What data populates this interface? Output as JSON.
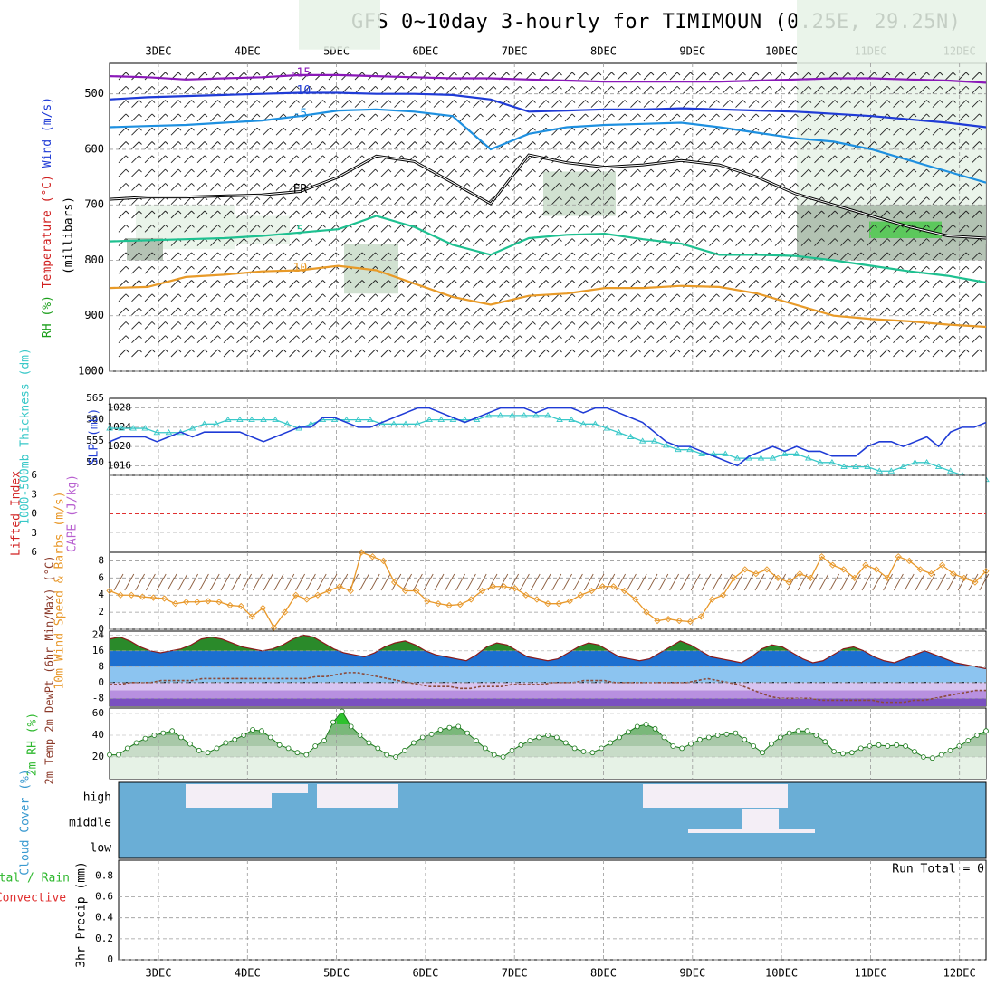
{
  "title": "GFS 0~10day 3-hourly for TIMIMOUN (0.25E, 29.25N)",
  "dates": [
    "3DEC",
    "4DEC",
    "5DEC",
    "6DEC",
    "7DEC",
    "8DEC",
    "9DEC",
    "10DEC",
    "11DEC",
    "12DEC"
  ],
  "colors": {
    "rh_shade": "#e6f2e6",
    "rh_mid": "#c9dcc9",
    "rh_dark": "#a8b8a8",
    "rh_green": "#4cc94c",
    "thickness": "#38c8c8",
    "slp": "#1f3bd6",
    "li_zero": "#e03030",
    "wind": "#e8982a",
    "cloud_blue": "#6aaed6",
    "cloud_white": "#f4eef6",
    "rh2m": "#2eb82e",
    "dewpt": "#8b4a3a"
  },
  "chart_data": [
    {
      "type": "contour",
      "name": "upper-air",
      "ylabel_parts": [
        "RH (%)",
        "Temperature (°C)",
        "Wind (m/s)"
      ],
      "ylabel_vertical": "(millibars)",
      "yticks": [
        500,
        600,
        700,
        800,
        900,
        1000
      ],
      "ylim": [
        1000,
        445
      ],
      "contours": [
        {
          "label": "-15",
          "color": "#8a18b8",
          "levels_mb": [
            468,
            470,
            474,
            472,
            470,
            466,
            466,
            468,
            470,
            472,
            472,
            474,
            476,
            478,
            478,
            478,
            478,
            476,
            474,
            472,
            472,
            474,
            476,
            480
          ]
        },
        {
          "label": "-10",
          "color": "#1f3bd6",
          "levels_mb": [
            510,
            506,
            504,
            502,
            500,
            498,
            498,
            500,
            500,
            502,
            510,
            532,
            530,
            528,
            528,
            526,
            528,
            530,
            532,
            536,
            540,
            546,
            552,
            560
          ]
        },
        {
          "label": "-5",
          "color": "#1e90e0",
          "levels_mb": [
            560,
            558,
            556,
            552,
            548,
            540,
            530,
            528,
            532,
            540,
            600,
            572,
            560,
            556,
            554,
            552,
            560,
            570,
            580,
            586,
            600,
            620,
            640,
            660
          ]
        },
        {
          "label": "FR",
          "color": "#000000",
          "levels_mb": [
            690,
            686,
            686,
            684,
            682,
            676,
            650,
            612,
            622,
            660,
            698,
            610,
            624,
            632,
            628,
            620,
            628,
            650,
            680,
            700,
            720,
            740,
            756,
            760
          ]
        },
        {
          "label": "5",
          "color": "#1ec090",
          "levels_mb": [
            766,
            764,
            762,
            760,
            756,
            750,
            744,
            720,
            740,
            772,
            790,
            760,
            754,
            752,
            762,
            770,
            790,
            790,
            792,
            800,
            810,
            820,
            828,
            840
          ]
        },
        {
          "label": "10",
          "color": "#e89a28",
          "levels_mb": [
            850,
            848,
            830,
            826,
            820,
            818,
            810,
            818,
            842,
            866,
            880,
            864,
            860,
            850,
            850,
            846,
            848,
            860,
            880,
            900,
            906,
            910,
            916,
            920
          ]
        }
      ]
    },
    {
      "type": "line",
      "name": "thickness-slp",
      "ylabel_left": "1000-500mb Thickness (dm)",
      "ylabel_right": "SLP (mb)",
      "left_ticks": [
        550,
        555,
        560,
        565
      ],
      "right_ticks": [
        1016,
        1020,
        1024,
        1028
      ],
      "ylim_left": [
        547,
        565
      ],
      "ylim_right": [
        1014,
        1030
      ],
      "series": [
        {
          "axis": "left",
          "values": [
            558,
            558,
            558,
            558,
            557,
            557,
            557,
            558,
            559,
            559,
            560,
            560,
            560,
            560,
            560,
            559,
            558,
            559,
            560,
            560,
            560,
            560,
            560,
            559,
            559,
            559,
            559,
            560,
            560,
            560,
            560,
            560,
            561,
            561,
            561,
            561,
            561,
            561,
            560,
            560,
            559,
            559,
            558,
            557,
            556,
            555,
            555,
            554,
            553,
            553,
            552,
            552,
            552,
            551,
            551,
            551,
            551,
            552,
            552,
            551,
            550,
            550,
            549,
            549,
            549,
            548,
            548,
            549,
            550,
            550,
            549,
            548,
            547,
            546,
            546
          ]
        },
        {
          "axis": "right",
          "values": [
            1021,
            1022,
            1022,
            1022,
            1021,
            1022,
            1023,
            1022,
            1023,
            1023,
            1023,
            1023,
            1022,
            1021,
            1022,
            1023,
            1024,
            1024,
            1026,
            1026,
            1025,
            1024,
            1024,
            1025,
            1026,
            1027,
            1028,
            1028,
            1027,
            1026,
            1025,
            1026,
            1027,
            1028,
            1028,
            1028,
            1027,
            1028,
            1028,
            1028,
            1027,
            1028,
            1028,
            1027,
            1026,
            1025,
            1023,
            1021,
            1020,
            1020,
            1019,
            1018,
            1017,
            1016,
            1018,
            1019,
            1020,
            1019,
            1020,
            1019,
            1019,
            1018,
            1018,
            1018,
            1020,
            1021,
            1021,
            1020,
            1021,
            1022,
            1020,
            1023,
            1024,
            1024,
            1025
          ]
        }
      ]
    },
    {
      "type": "line",
      "name": "li-cape",
      "ylabel_left": "Lifted Index",
      "ylabel_right": "CAPE (J/kg)",
      "yticks": [
        -6,
        -3,
        0,
        3,
        6
      ],
      "ylim": [
        -6,
        6
      ],
      "reference_line": 0
    },
    {
      "type": "line",
      "name": "wind10m",
      "ylabel": "10m Wind Speed & Barbs (m/s)",
      "yticks": [
        0,
        2,
        4,
        6,
        8
      ],
      "ylim": [
        0,
        9
      ],
      "series": [
        {
          "values": [
            4.5,
            4.0,
            4.0,
            3.8,
            3.7,
            3.6,
            3.0,
            3.2,
            3.2,
            3.3,
            3.2,
            2.8,
            2.7,
            1.5,
            2.5,
            0.2,
            2.0,
            4.0,
            3.5,
            4.0,
            4.5,
            5.0,
            4.5,
            9.0,
            8.5,
            8.0,
            5.5,
            4.5,
            4.5,
            3.3,
            3.0,
            2.8,
            2.9,
            3.5,
            4.5,
            5.0,
            5.0,
            4.8,
            4.0,
            3.5,
            3.0,
            3.0,
            3.3,
            4.0,
            4.5,
            5.0,
            5.0,
            4.5,
            3.5,
            2.0,
            1.0,
            1.2,
            1.0,
            0.9,
            1.5,
            3.5,
            4.0,
            6.0,
            7.0,
            6.5,
            7.0,
            6.0,
            5.5,
            6.5,
            6.0,
            8.5,
            7.5,
            7.0,
            6.0,
            7.5,
            7.0,
            6.0,
            8.5,
            8.0,
            7.0,
            6.5,
            7.5,
            6.5,
            6.0,
            5.5,
            6.8
          ]
        }
      ]
    },
    {
      "type": "area",
      "name": "temp2m",
      "ylabel": "2m Temp 2m DewPt (6hr Min/Max) (°C)",
      "yticks": [
        -8,
        0,
        8,
        16,
        24
      ],
      "ylim": [
        -12,
        26
      ],
      "series": [
        {
          "name": "Temp",
          "values": [
            22,
            23,
            21,
            18,
            16,
            15,
            16,
            17,
            19,
            22,
            23,
            22,
            20,
            18,
            17,
            16,
            17,
            19,
            22,
            24,
            23,
            20,
            17,
            15,
            14,
            13,
            15,
            18,
            20,
            21,
            19,
            16,
            14,
            13,
            12,
            11,
            14,
            18,
            20,
            19,
            16,
            13,
            12,
            11,
            12,
            15,
            18,
            20,
            19,
            16,
            13,
            12,
            11,
            12,
            15,
            18,
            21,
            19,
            16,
            13,
            12,
            11,
            10,
            13,
            17,
            19,
            18,
            15,
            12,
            10,
            11,
            14,
            17,
            18,
            16,
            13,
            11,
            10,
            12,
            14,
            16,
            14,
            12,
            10,
            9,
            8,
            7
          ]
        },
        {
          "name": "DewPt",
          "values": [
            -1,
            -1,
            0,
            0,
            0,
            1,
            1,
            1,
            1,
            2,
            2,
            2,
            2,
            2,
            2,
            2,
            2,
            2,
            2,
            2,
            3,
            3,
            4,
            5,
            5,
            4,
            3,
            2,
            1,
            0,
            -1,
            -2,
            -2,
            -2,
            -3,
            -3,
            -2,
            -2,
            -2,
            -1,
            -1,
            -1,
            -1,
            0,
            0,
            0,
            1,
            1,
            1,
            0,
            0,
            0,
            0,
            0,
            0,
            0,
            0,
            1,
            2,
            1,
            0,
            -1,
            -3,
            -5,
            -7,
            -8,
            -8,
            -8,
            -8,
            -9,
            -9,
            -9,
            -9,
            -9,
            -9,
            -10,
            -10,
            -10,
            -9,
            -9,
            -8,
            -7,
            -6,
            -5,
            -4,
            -4
          ]
        }
      ]
    },
    {
      "type": "area",
      "name": "rh2m",
      "ylabel": "2m RH (%)",
      "yticks": [
        20,
        40,
        60
      ],
      "ylim": [
        0,
        65
      ],
      "series": [
        {
          "values": [
            22,
            22,
            28,
            33,
            37,
            40,
            42,
            44,
            38,
            32,
            26,
            24,
            28,
            33,
            36,
            40,
            45,
            44,
            38,
            31,
            28,
            24,
            22,
            30,
            35,
            52,
            62,
            48,
            40,
            33,
            28,
            22,
            20,
            26,
            33,
            38,
            41,
            45,
            47,
            48,
            42,
            35,
            28,
            22,
            20,
            26,
            31,
            35,
            38,
            40,
            38,
            33,
            28,
            25,
            24,
            28,
            33,
            38,
            43,
            48,
            50,
            46,
            38,
            30,
            28,
            32,
            36,
            38,
            40,
            41,
            42,
            36,
            30,
            24,
            32,
            38,
            42,
            44,
            44,
            40,
            34,
            25,
            23,
            24,
            28,
            30,
            31,
            30,
            31,
            30,
            25,
            20,
            19,
            22,
            26,
            30,
            35,
            40,
            44
          ]
        }
      ]
    },
    {
      "type": "area",
      "name": "cloud",
      "ylabel": "Cloud Cover (%)",
      "levels": [
        "high",
        "middle",
        "low"
      ]
    },
    {
      "type": "bar",
      "name": "precip",
      "ylabel_left": "Total / Rain Convective",
      "ylabel": "3hr Precip (mm)",
      "yticks": [
        0,
        0.2,
        0.4,
        0.6,
        0.8
      ],
      "ylim": [
        0,
        0.95
      ],
      "run_total": "Run Total = 0"
    }
  ]
}
